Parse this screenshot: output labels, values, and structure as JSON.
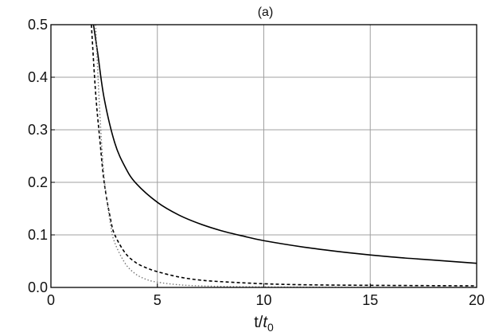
{
  "chart_data": {
    "type": "line",
    "title": "(a)",
    "xlabel": "t/t0",
    "xlabel_parts": {
      "main": "t/",
      "italic": "t",
      "sub": "0"
    },
    "ylabel": "",
    "xlim": [
      0,
      20
    ],
    "ylim": [
      0,
      0.5
    ],
    "grid": true,
    "x_ticks": [
      0,
      5,
      10,
      15,
      20
    ],
    "y_ticks": [
      0.0,
      0.1,
      0.2,
      0.3,
      0.4,
      0.5
    ],
    "x_tick_labels": [
      "0",
      "5",
      "10",
      "15",
      "20"
    ],
    "y_tick_labels": [
      "0.0",
      "0.1",
      "0.2",
      "0.3",
      "0.4",
      "0.5"
    ],
    "series": [
      {
        "style": "solid",
        "color": "#000000",
        "x": [
          2.0,
          2.2,
          2.5,
          3.0,
          3.5,
          4.0,
          5.0,
          6.0,
          7.0,
          8.0,
          9.0,
          10.0,
          12.0,
          14.0,
          16.0,
          18.0,
          20.0
        ],
        "y": [
          0.5,
          0.445,
          0.36,
          0.275,
          0.228,
          0.198,
          0.162,
          0.138,
          0.121,
          0.108,
          0.098,
          0.089,
          0.076,
          0.066,
          0.058,
          0.052,
          0.046
        ]
      },
      {
        "style": "dashed",
        "color": "#000000",
        "x": [
          1.9,
          2.1,
          2.3,
          2.5,
          2.8,
          3.0,
          3.5,
          4.0,
          4.5,
          5.0,
          6.0,
          7.0,
          8.0,
          10.0,
          12.0,
          15.0,
          20.0
        ],
        "y": [
          0.5,
          0.37,
          0.28,
          0.2,
          0.13,
          0.1,
          0.065,
          0.047,
          0.037,
          0.03,
          0.02,
          0.014,
          0.011,
          0.007,
          0.005,
          0.004,
          0.003
        ]
      },
      {
        "style": "dotted",
        "color": "#777777",
        "x": [
          2.1,
          2.3,
          2.5,
          2.8,
          3.0,
          3.5,
          4.0,
          4.5,
          5.0,
          6.0,
          7.0,
          8.0,
          10.0,
          15.0,
          20.0
        ],
        "y": [
          0.5,
          0.33,
          0.21,
          0.12,
          0.085,
          0.045,
          0.025,
          0.015,
          0.01,
          0.005,
          0.003,
          0.002,
          0.001,
          0.0,
          0.0
        ]
      }
    ]
  }
}
